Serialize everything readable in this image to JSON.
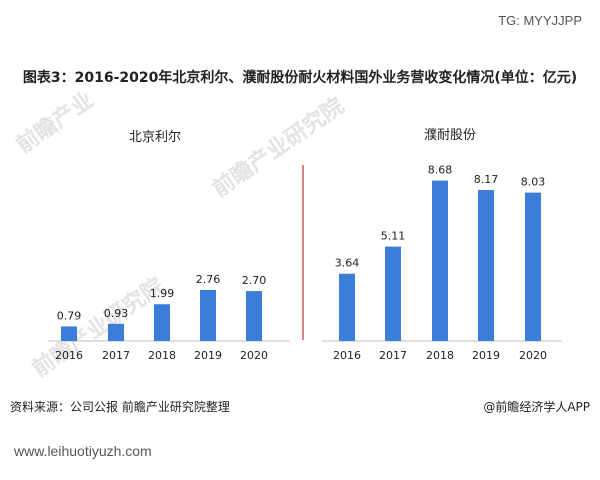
{
  "header": {
    "tag": "TG: MYYJJPP",
    "title": "图表3：2016-2020年北京利尔、濮耐股份耐火材料国外业务营收变化情况(单位：亿元)"
  },
  "footer": {
    "source": "资料来源：公司公报 前瞻产业研究院整理",
    "credit": "@前瞻经济学人APP",
    "url": "www.leihuotiyuzh.com"
  },
  "colors": {
    "bar": "#3b7dd8",
    "divider": "#c00000",
    "axis": "#bfbfbf"
  },
  "chart_data": [
    {
      "type": "bar",
      "title": "北京利尔",
      "categories": [
        "2016",
        "2017",
        "2018",
        "2019",
        "2020"
      ],
      "values": [
        0.79,
        0.93,
        1.99,
        2.76,
        2.7
      ],
      "ylim": [
        0,
        9.2
      ]
    },
    {
      "type": "bar",
      "title": "濮耐股份",
      "categories": [
        "2016",
        "2017",
        "2018",
        "2019",
        "2020"
      ],
      "values": [
        3.64,
        5.11,
        8.68,
        8.17,
        8.03
      ],
      "ylim": [
        0,
        9.2
      ]
    }
  ]
}
